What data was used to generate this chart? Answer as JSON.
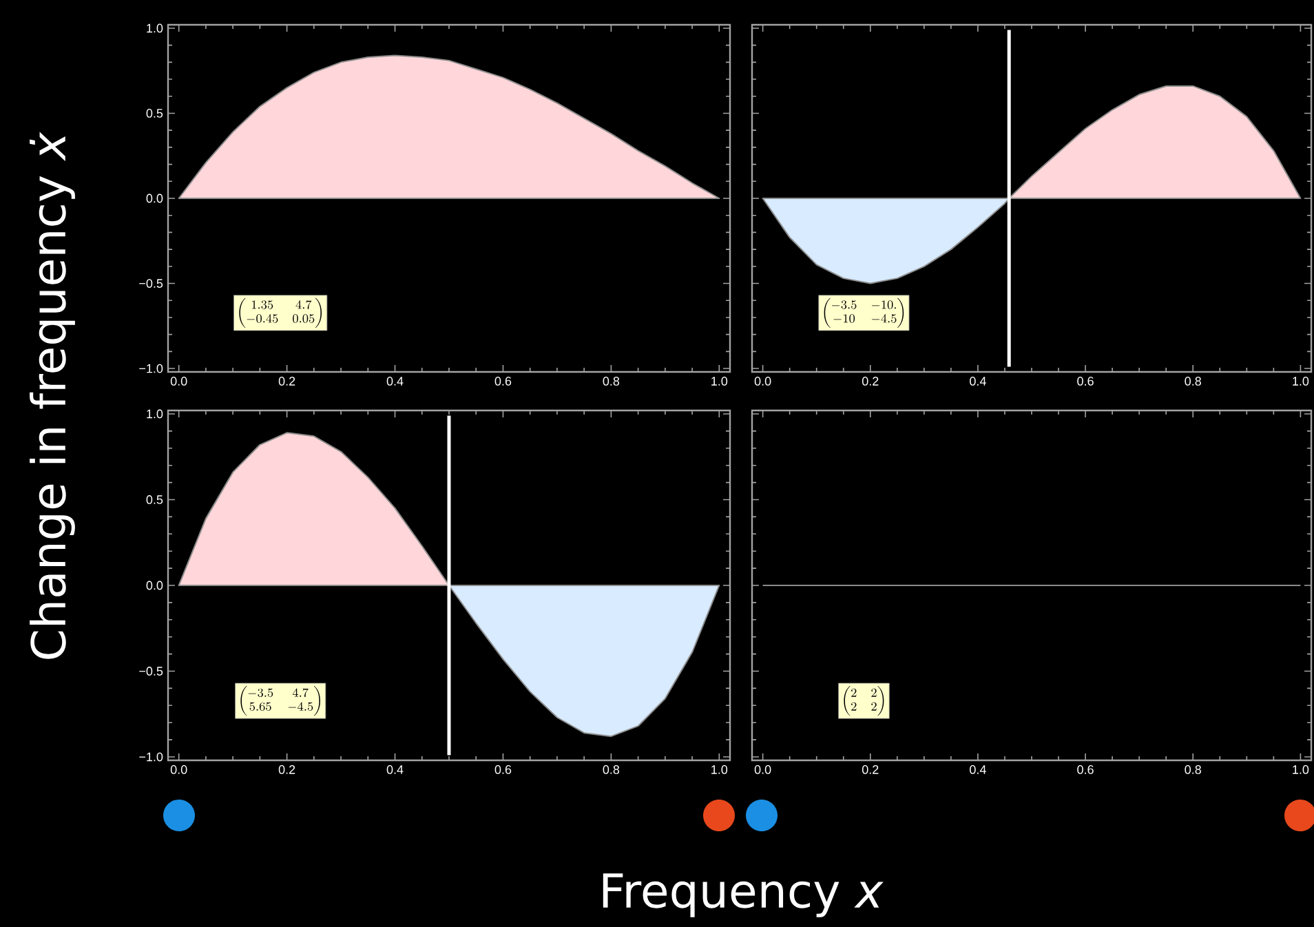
{
  "chart_data": [
    {
      "type": "area",
      "ylabel": "Change in frequency *ẋ*",
      "x": [
        0,
        0.05,
        0.1,
        0.15,
        0.2,
        0.25,
        0.3,
        0.35,
        0.4,
        0.45,
        0.5,
        0.55,
        0.6,
        0.65,
        0.7,
        0.75,
        0.8,
        0.85,
        0.9,
        0.95,
        1
      ],
      "series": [
        {
          "color": "#ffd6d9",
          "values": [
            0,
            0.21,
            0.39,
            0.54,
            0.65,
            0.74,
            0.8,
            0.83,
            0.84,
            0.83,
            0.81,
            0.76,
            0.71,
            0.64,
            0.56,
            0.47,
            0.38,
            0.28,
            0.19,
            0.09,
            0
          ]
        }
      ],
      "xlim": [
        -0.02,
        1.02
      ],
      "ylim": [
        -1.02,
        1.02
      ],
      "xticks": [
        {
          "value": 0,
          "label": "0.0"
        },
        {
          "value": 0.2,
          "label": "0.2"
        },
        {
          "value": 0.4,
          "label": "0.4"
        },
        {
          "value": 0.6,
          "label": "0.6"
        },
        {
          "value": 0.8,
          "label": "0.8"
        },
        {
          "value": 1,
          "label": "1.0"
        }
      ],
      "yticks": [
        {
          "value": -1,
          "label": "−1.0"
        },
        {
          "value": -0.5,
          "label": "−0.5"
        },
        {
          "value": 0,
          "label": "0.0"
        },
        {
          "value": 0.5,
          "label": "0.5"
        },
        {
          "value": 1,
          "label": "1.0"
        }
      ],
      "annotations": [
        "\\begin{pmatrix}1.35 & 4.7\\\\ -0.45 & 0.05\\end{pmatrix}"
      ]
    },
    {
      "type": "area",
      "x": [
        0,
        0.05,
        0.1,
        0.15,
        0.2,
        0.25,
        0.3,
        0.35,
        0.4,
        0.45,
        0.458,
        0.5,
        0.55,
        0.6,
        0.65,
        0.7,
        0.75,
        0.8,
        0.85,
        0.9,
        0.95,
        1
      ],
      "series": [
        {
          "color": "#d8ebff",
          "values": [
            0,
            -0.23,
            -0.39,
            -0.47,
            -0.5,
            -0.47,
            -0.4,
            -0.3,
            -0.17,
            -0.03,
            0,
            null,
            null,
            null,
            null,
            null,
            null,
            null,
            null,
            null,
            null,
            null
          ]
        },
        {
          "color": "#ffd6d9",
          "values": [
            null,
            null,
            null,
            null,
            null,
            null,
            null,
            null,
            null,
            null,
            0,
            0.13,
            0.27,
            0.41,
            0.52,
            0.61,
            0.66,
            0.66,
            0.6,
            0.48,
            0.28,
            0
          ]
        }
      ],
      "xlim": [
        -0.02,
        1.02
      ],
      "ylim": [
        -1.02,
        1.02
      ],
      "xticks": [
        {
          "value": 0,
          "label": "0.0"
        },
        {
          "value": 0.2,
          "label": "0.2"
        },
        {
          "value": 0.4,
          "label": "0.4"
        },
        {
          "value": 0.6,
          "label": "0.6"
        },
        {
          "value": 0.8,
          "label": "0.8"
        },
        {
          "value": 1,
          "label": "1.0"
        }
      ],
      "yticks": [
        {
          "value": -1,
          "label": null
        },
        {
          "value": -0.5,
          "label": null
        },
        {
          "value": 0,
          "label": null
        },
        {
          "value": 0.5,
          "label": null
        },
        {
          "value": 1,
          "label": null
        }
      ],
      "tick_labels": "x",
      "ref_lines": [
        {
          "axis": "x",
          "value": 0.458,
          "color": "#ffffff"
        }
      ],
      "annotations": [
        "\\begin{pmatrix}-3.5 & -10.\\\\ -10 & -4.5\\end{pmatrix}"
      ]
    },
    {
      "type": "area",
      "xlabel": "Frequency *x*",
      "x": [
        0,
        0.05,
        0.1,
        0.15,
        0.2,
        0.25,
        0.3,
        0.35,
        0.4,
        0.45,
        0.5,
        0.55,
        0.6,
        0.65,
        0.7,
        0.75,
        0.8,
        0.85,
        0.9,
        0.95,
        1
      ],
      "series": [
        {
          "color": "#ffd6d9",
          "values": [
            0,
            0.39,
            0.66,
            0.82,
            0.89,
            0.87,
            0.78,
            0.63,
            0.45,
            0.23,
            0,
            null,
            null,
            null,
            null,
            null,
            null,
            null,
            null,
            null,
            null
          ]
        },
        {
          "color": "#d8ebff",
          "values": [
            null,
            null,
            null,
            null,
            null,
            null,
            null,
            null,
            null,
            null,
            0,
            -0.22,
            -0.43,
            -0.62,
            -0.77,
            -0.86,
            -0.88,
            -0.82,
            -0.66,
            -0.39,
            0
          ]
        }
      ],
      "xlim": [
        -0.02,
        1.02
      ],
      "ylim": [
        -1.02,
        1.02
      ],
      "xticks": [
        {
          "value": 0,
          "label": "0.0"
        },
        {
          "value": 0.2,
          "label": "0.2"
        },
        {
          "value": 0.4,
          "label": "0.4"
        },
        {
          "value": 0.6,
          "label": "0.6"
        },
        {
          "value": 0.8,
          "label": "0.8"
        },
        {
          "value": 1,
          "label": "1.0"
        }
      ],
      "yticks": [
        {
          "value": -1,
          "label": "−1.0"
        },
        {
          "value": -0.5,
          "label": "−0.5"
        },
        {
          "value": 0,
          "label": "0.0"
        },
        {
          "value": 0.5,
          "label": "0.5"
        },
        {
          "value": 1,
          "label": "1.0"
        }
      ],
      "ref_lines": [
        {
          "axis": "x",
          "value": 0.5,
          "color": "#ffffff"
        }
      ],
      "annotations": [
        "\\begin{pmatrix}-3.5 & 4.7\\\\ 5.65 & -4.5\\end{pmatrix}"
      ]
    },
    {
      "type": "line",
      "x": [
        0,
        1
      ],
      "series": [
        {
          "color": "#8c8c8c",
          "values": [
            0,
            0
          ]
        }
      ],
      "xlim": [
        -0.02,
        1.02
      ],
      "ylim": [
        -1.02,
        1.02
      ],
      "xticks": [
        {
          "value": 0,
          "label": "0.0"
        },
        {
          "value": 0.2,
          "label": "0.2"
        },
        {
          "value": 0.4,
          "label": "0.4"
        },
        {
          "value": 0.6,
          "label": "0.6"
        },
        {
          "value": 0.8,
          "label": "0.8"
        },
        {
          "value": 1,
          "label": "1.0"
        }
      ],
      "yticks": [
        {
          "value": -1,
          "label": null
        },
        {
          "value": -0.5,
          "label": null
        },
        {
          "value": 0,
          "label": null
        },
        {
          "value": 0.5,
          "label": null
        },
        {
          "value": 1,
          "label": null
        }
      ],
      "tick_labels": "x",
      "annotations": [
        "\\begin{pmatrix}2 & 2\\\\ 2 & 2\\end{pmatrix}"
      ]
    }
  ]
}
